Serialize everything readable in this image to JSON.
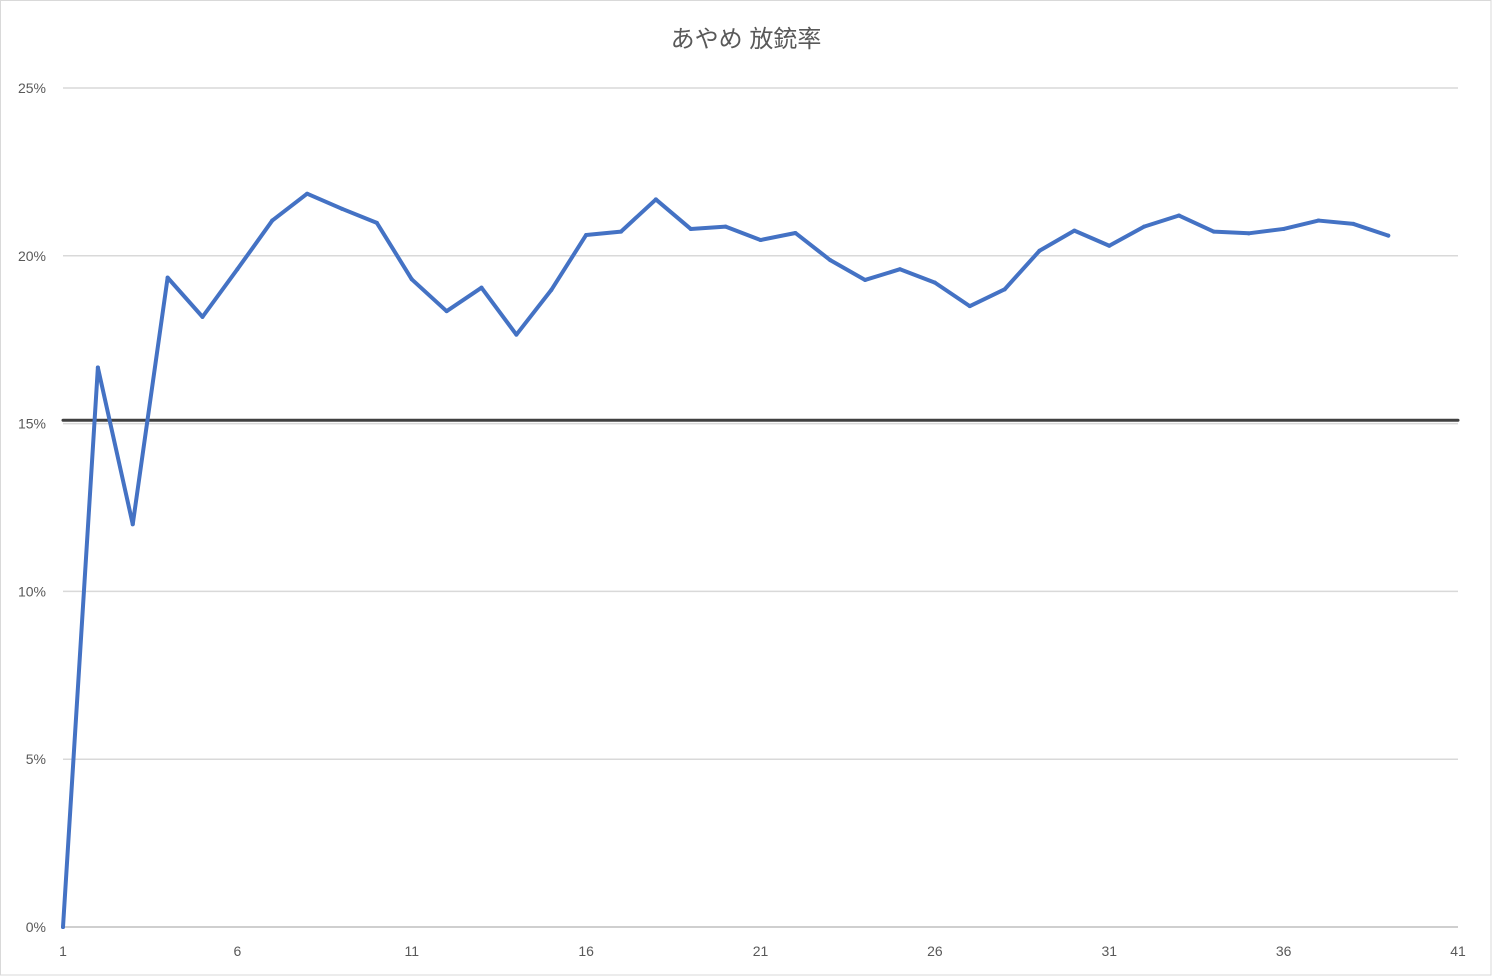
{
  "chart_data": {
    "type": "line",
    "title": "あやめ 放銃率",
    "xlabel": "",
    "ylabel": "",
    "xlim": [
      1,
      41
    ],
    "ylim": [
      0,
      25
    ],
    "x_ticks": [
      "1",
      "6",
      "11",
      "16",
      "21",
      "26",
      "31",
      "36",
      "41"
    ],
    "y_ticks": [
      "0%",
      "5%",
      "10%",
      "15%",
      "20%",
      "25%"
    ],
    "grid": true,
    "legend": "none",
    "series": [
      {
        "color": "#4472C4",
        "x": [
          1,
          2,
          3,
          4,
          5,
          6,
          7,
          8,
          9,
          10,
          11,
          12,
          13,
          14,
          15,
          16,
          17,
          18,
          19,
          20,
          21,
          22,
          23,
          24,
          25,
          26,
          27,
          28,
          29,
          30,
          31,
          32,
          33,
          34,
          35,
          36,
          37,
          38,
          39
        ],
        "values": [
          0,
          16.67,
          12.0,
          19.35,
          18.18,
          19.6,
          21.05,
          21.85,
          21.4,
          20.98,
          19.3,
          18.35,
          19.05,
          17.65,
          18.98,
          20.62,
          20.72,
          21.68,
          20.8,
          20.87,
          20.47,
          20.68,
          19.87,
          19.28,
          19.6,
          19.2,
          18.5,
          19.0,
          20.15,
          20.75,
          20.3,
          20.87,
          21.2,
          20.72,
          20.67,
          20.8,
          21.05,
          20.95,
          20.6
        ]
      },
      {
        "color": "#404040",
        "x": [
          1,
          41
        ],
        "values": [
          15.1,
          15.1
        ]
      }
    ]
  }
}
